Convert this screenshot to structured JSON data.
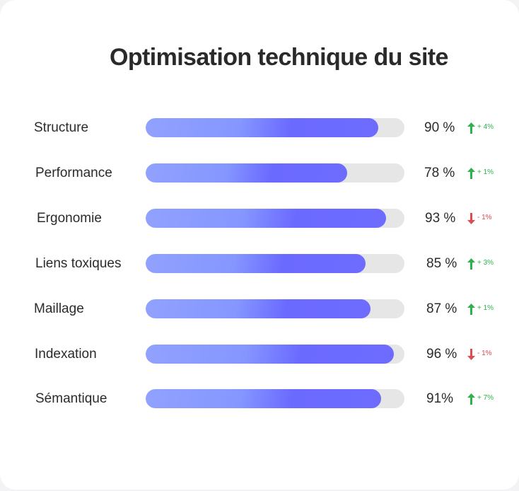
{
  "title": "Optimisation technique du site",
  "colors": {
    "up": "#2db34a",
    "down": "#e04b4b",
    "track": "#e6e6e6"
  },
  "chart_data": {
    "type": "bar",
    "orientation": "horizontal",
    "title": "Optimisation technique du site",
    "xlim": [
      0,
      100
    ],
    "categories": [
      "Structure",
      "Performance",
      "Ergonomie",
      "Liens toxiques",
      "Maillage",
      "Indexation",
      "Sémantique"
    ],
    "values": [
      90,
      78,
      93,
      85,
      87,
      96,
      91
    ],
    "value_labels": [
      "90 %",
      "78 %",
      "93 %",
      "85 %",
      "87 %",
      "96 %",
      "91%"
    ],
    "deltas": [
      {
        "label": "+ 4%",
        "direction": "up",
        "icon": "arrow-up-icon"
      },
      {
        "label": "+ 1%",
        "direction": "up",
        "icon": "arrow-up-icon"
      },
      {
        "label": "- 1%",
        "direction": "down",
        "icon": "arrow-down-icon"
      },
      {
        "label": "+ 3%",
        "direction": "up",
        "icon": "arrow-up-icon"
      },
      {
        "label": "+ 1%",
        "direction": "up",
        "icon": "arrow-up-icon"
      },
      {
        "label": "- 1%",
        "direction": "down",
        "icon": "arrow-down-icon"
      },
      {
        "label": "+ 7%",
        "direction": "up",
        "icon": "arrow-up-icon"
      }
    ]
  }
}
